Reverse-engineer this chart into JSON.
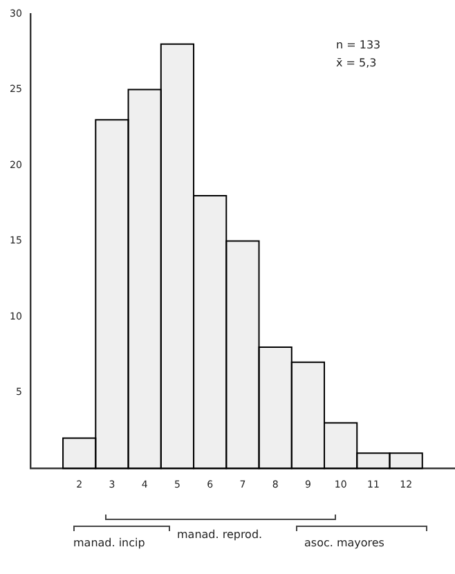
{
  "chart_data": {
    "type": "histogram",
    "bins": [
      1.5,
      2.5,
      3.5,
      4.5,
      5.5,
      6.5,
      7.5,
      8.5,
      9.5,
      10.5,
      11.5,
      12.5
    ],
    "values": [
      2,
      23,
      25,
      28,
      18,
      15,
      8,
      7,
      3,
      1,
      1
    ],
    "color": "#000000",
    "xlim": [
      0.5,
      13.5
    ],
    "xticks": [
      2,
      3,
      4,
      5,
      6,
      7,
      8,
      9,
      10,
      11,
      12
    ],
    "ylim": [
      0,
      30
    ],
    "yticks": [
      5,
      10,
      15,
      20,
      25,
      30
    ],
    "annotations": [
      "n = 133",
      "x̄ = 5,3",
      "manad. incip",
      "manad. reprod.",
      "asoc. mayores"
    ]
  }
}
